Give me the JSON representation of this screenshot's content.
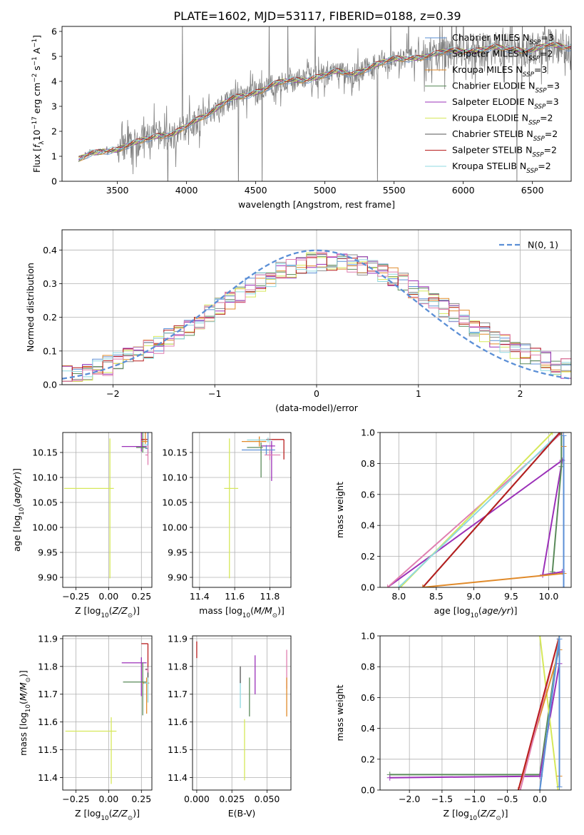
{
  "figure_title": "PLATE=1602, MJD=53117, FIBERID=0188, z=0.39",
  "colors": {
    "Chabrier MILES": "#5b8fd6",
    "Salpeter MILES": "#8c8c8c",
    "Kroupa MILES": "#e08a2a",
    "Chabrier ELODIE": "#5a8a5a",
    "Salpeter ELODIE": "#9b30b8",
    "Kroupa ELODIE": "#d6e85a",
    "Chabrier STELIB": "#555555",
    "Salpeter STELIB": "#b81e1e",
    "Kroupa STELIB": "#8fd8e0",
    "pink": "#e07fb0",
    "normal_curve": "#5b8fd6",
    "grid": "#b0b0b0"
  },
  "chart_data": [
    {
      "id": "spectrum",
      "type": "line",
      "xlabel": "wavelength [Angstrom, rest frame]",
      "ylabel": "Flux [f_λ 10^-17 erg cm^-2 s^-1 A^-1]",
      "xlim": [
        3100,
        6780
      ],
      "ylim": [
        0,
        6.2
      ],
      "xticks": [
        3500,
        4000,
        4500,
        5000,
        5500,
        6000,
        6500
      ],
      "yticks": [
        0,
        1,
        2,
        3,
        4,
        5,
        6
      ],
      "grid": false,
      "legend_position": "top-right",
      "legend": [
        {
          "model": "Chabrier MILES",
          "n": "3"
        },
        {
          "model": "Salpeter MILES",
          "n": "2"
        },
        {
          "model": "Kroupa MILES",
          "n": "3"
        },
        {
          "model": "Chabrier ELODIE",
          "n": "3"
        },
        {
          "model": "Salpeter ELODIE",
          "n": "3"
        },
        {
          "model": "Kroupa ELODIE",
          "n": "2"
        },
        {
          "model": "Chabrier STELIB",
          "n": "2"
        },
        {
          "model": "Salpeter STELIB",
          "n": "2"
        },
        {
          "model": "Kroupa STELIB",
          "n": "2"
        }
      ],
      "model_trend": [
        [
          3220,
          0.85
        ],
        [
          3300,
          1.15
        ],
        [
          3400,
          1.25
        ],
        [
          3500,
          1.2
        ],
        [
          3600,
          1.45
        ],
        [
          3700,
          1.75
        ],
        [
          3800,
          1.85
        ],
        [
          3900,
          1.8
        ],
        [
          4000,
          2.2
        ],
        [
          4100,
          2.6
        ],
        [
          4200,
          2.85
        ],
        [
          4300,
          3.2
        ],
        [
          4400,
          3.4
        ],
        [
          4500,
          3.6
        ],
        [
          4600,
          3.8
        ],
        [
          4700,
          3.95
        ],
        [
          4800,
          4.05
        ],
        [
          4900,
          4.15
        ],
        [
          5000,
          4.25
        ],
        [
          5100,
          4.35
        ],
        [
          5200,
          4.3
        ],
        [
          5300,
          4.55
        ],
        [
          5400,
          4.7
        ],
        [
          5500,
          4.85
        ],
        [
          5600,
          4.95
        ],
        [
          5700,
          5.0
        ],
        [
          5800,
          5.05
        ],
        [
          5900,
          5.2
        ],
        [
          6000,
          5.25
        ],
        [
          6100,
          5.25
        ],
        [
          6200,
          5.3
        ],
        [
          6300,
          5.3
        ],
        [
          6400,
          5.3
        ],
        [
          6500,
          5.25
        ],
        [
          6600,
          5.4
        ],
        [
          6700,
          5.4
        ]
      ]
    },
    {
      "id": "residuals",
      "type": "step",
      "xlabel": "(data-model)/error",
      "ylabel": "Normed distribution",
      "xlim": [
        -2.5,
        2.5
      ],
      "ylim": [
        0,
        0.46
      ],
      "xticks": [
        -2,
        -1,
        0,
        1,
        2
      ],
      "yticks": [
        0.0,
        0.1,
        0.2,
        0.3,
        0.4
      ],
      "grid": true,
      "legend_position": "top-right",
      "legend_label": "N(0, 1)",
      "curve": "gaussian mean 0 sigma 1",
      "bins": 50
    },
    {
      "id": "age_vs_Z",
      "type": "scatter",
      "xlabel": "Z [log10(Z/Z☉)]",
      "ylabel": "age  [log10(age/yr)]",
      "xlim": [
        -0.35,
        0.33
      ],
      "ylim": [
        9.88,
        10.19
      ],
      "xticks": [
        -0.25,
        0.0,
        0.25
      ],
      "yticks": [
        9.9,
        9.95,
        10.0,
        10.05,
        10.1,
        10.15
      ],
      "grid": true,
      "points": [
        {
          "model": "Kroupa ELODIE",
          "x": 0.01,
          "y": 10.078,
          "xerr": [
            0.35,
            0.03
          ],
          "yerr": [
            0.18,
            0.1
          ]
        },
        {
          "model": "Salpeter ELODIE",
          "x": 0.25,
          "y": 10.162,
          "xerr": [
            0.15,
            0.04
          ],
          "yerr": [
            0.01,
            0.07
          ]
        },
        {
          "model": "Chabrier ELODIE",
          "x": 0.26,
          "y": 10.16,
          "xerr": [
            0.05,
            0.03
          ],
          "yerr": [
            0.01,
            0.06
          ]
        },
        {
          "model": "Salpeter STELIB",
          "x": 0.3,
          "y": 10.176,
          "xerr": [
            0.05,
            0.0
          ],
          "yerr": [
            0.0,
            0.08
          ]
        },
        {
          "model": "Kroupa MILES",
          "x": 0.28,
          "y": 10.172,
          "xerr": [
            0.03,
            0.02
          ],
          "yerr": [
            0.005,
            0.07
          ]
        },
        {
          "model": "Kroupa STELIB",
          "x": 0.3,
          "y": 10.165,
          "xerr": [
            0.03,
            0.0
          ],
          "yerr": [
            0.01,
            0.06
          ]
        },
        {
          "model": "Chabrier MILES",
          "x": 0.3,
          "y": 10.158,
          "xerr": [
            0.02,
            0.0
          ],
          "yerr": [
            0.01,
            0.06
          ]
        },
        {
          "model": "pink",
          "x": 0.3,
          "y": 10.145,
          "xerr": [
            0.02,
            0.0
          ],
          "yerr": [
            0.02,
            0.02
          ]
        }
      ]
    },
    {
      "id": "age_vs_mass",
      "type": "scatter",
      "xlabel": "mass [log10(M/M☉)]",
      "ylabel": "",
      "xlim": [
        11.36,
        11.92
      ],
      "ylim": [
        9.88,
        10.19
      ],
      "xticks": [
        11.4,
        11.6,
        11.8
      ],
      "yticks": [
        9.9,
        9.95,
        10.0,
        10.05,
        10.1,
        10.15
      ],
      "grid": true,
      "points": [
        {
          "model": "Kroupa ELODIE",
          "x": 11.57,
          "y": 10.078,
          "xerr": [
            0.03,
            0.05
          ],
          "yerr": [
            0.18,
            0.1
          ]
        },
        {
          "model": "Salpeter ELODIE",
          "x": 11.81,
          "y": 10.163,
          "xerr": [
            0.06,
            0.02
          ],
          "yerr": [
            0.07,
            0.01
          ]
        },
        {
          "model": "Chabrier ELODIE",
          "x": 11.75,
          "y": 10.16,
          "xerr": [
            0.08,
            0.01
          ],
          "yerr": [
            0.06,
            0.01
          ]
        },
        {
          "model": "Salpeter STELIB",
          "x": 11.88,
          "y": 10.176,
          "xerr": [
            0.1,
            0.0
          ],
          "yerr": [
            0.04,
            0.0
          ]
        },
        {
          "model": "Kroupa MILES",
          "x": 11.74,
          "y": 10.172,
          "xerr": [
            0.1,
            0.04
          ],
          "yerr": [
            0.01,
            0.01
          ]
        },
        {
          "model": "Kroupa STELIB",
          "x": 11.79,
          "y": 10.175,
          "xerr": [
            0.12,
            0.02
          ],
          "yerr": [
            0.005,
            0.005
          ]
        },
        {
          "model": "Chabrier MILES",
          "x": 11.78,
          "y": 10.155,
          "xerr": [
            0.14,
            0.05
          ],
          "yerr": [
            0.01,
            0.01
          ]
        },
        {
          "model": "pink",
          "x": 11.8,
          "y": 10.145,
          "xerr": [
            0.03,
            0.06
          ],
          "yerr": [
            0.01,
            0.01
          ]
        }
      ]
    },
    {
      "id": "weight_vs_age",
      "type": "line",
      "xlabel": "age  [log10(age/yr)]",
      "ylabel": "mass weight",
      "xlim": [
        7.75,
        10.3
      ],
      "ylim": [
        0,
        1.0
      ],
      "xticks": [
        8.0,
        8.5,
        9.0,
        9.5,
        10.0
      ],
      "yticks": [
        0.0,
        0.2,
        0.4,
        0.6,
        0.8,
        1.0
      ],
      "grid": true,
      "series": [
        {
          "model": "Salpeter ELODIE",
          "x": [
            7.85,
            10.18,
            9.92,
            10.18
          ],
          "y": [
            0.0,
            0.82,
            0.08,
            0.1
          ]
        },
        {
          "model": "pink",
          "x": [
            7.85,
            10.18
          ],
          "y": [
            0.0,
            1.0
          ]
        },
        {
          "model": "Kroupa ELODIE",
          "x": [
            8.02,
            10.05
          ],
          "y": [
            0.0,
            1.0
          ]
        },
        {
          "model": "Kroupa STELIB",
          "x": [
            8.0,
            10.15
          ],
          "y": [
            0.0,
            1.0
          ]
        },
        {
          "model": "Chabrier STELIB",
          "x": [
            8.32,
            10.15
          ],
          "y": [
            0.0,
            1.0
          ]
        },
        {
          "model": "Salpeter STELIB",
          "x": [
            8.32,
            10.15
          ],
          "y": [
            0.0,
            1.0
          ]
        },
        {
          "model": "Chabrier ELODIE",
          "x": [
            10.05,
            10.17,
            10.17
          ],
          "y": [
            0.1,
            0.78,
            1.0
          ]
        },
        {
          "model": "Kroupa MILES",
          "x": [
            8.32,
            10.2,
            10.2
          ],
          "y": [
            0.0,
            0.09,
            0.91
          ]
        },
        {
          "model": "Chabrier MILES",
          "x": [
            10.2,
            10.2
          ],
          "y": [
            0.0,
            0.98
          ]
        }
      ]
    },
    {
      "id": "mass_vs_Z",
      "type": "scatter",
      "xlabel": "Z [log10(Z/Z☉)]",
      "ylabel": "mass [log10(M/M☉)]",
      "xlim": [
        -0.35,
        0.33
      ],
      "ylim": [
        11.355,
        11.91
      ],
      "xticks": [
        -0.25,
        0.0,
        0.25
      ],
      "yticks": [
        11.4,
        11.5,
        11.6,
        11.7,
        11.8,
        11.9
      ],
      "grid": true,
      "points": [
        {
          "model": "Kroupa ELODIE",
          "x": 0.02,
          "y": 11.567,
          "xerr": [
            0.35,
            0.04
          ],
          "yerr": [
            0.19,
            0.05
          ]
        },
        {
          "model": "Salpeter ELODIE",
          "x": 0.25,
          "y": 11.813,
          "xerr": [
            0.15,
            0.04
          ],
          "yerr": [
            0.12,
            0.02
          ]
        },
        {
          "model": "Chabrier ELODIE",
          "x": 0.26,
          "y": 11.744,
          "xerr": [
            0.15,
            0.03
          ],
          "yerr": [
            0.12,
            0.07
          ]
        },
        {
          "model": "Salpeter STELIB",
          "x": 0.3,
          "y": 11.882,
          "xerr": [
            0.05,
            0.0
          ],
          "yerr": [
            0.12,
            0.0
          ]
        },
        {
          "model": "Kroupa MILES",
          "x": 0.29,
          "y": 11.74,
          "xerr": [
            0.03,
            0.02
          ],
          "yerr": [
            0.11,
            0.02
          ]
        },
        {
          "model": "Kroupa STELIB",
          "x": 0.3,
          "y": 11.74,
          "xerr": [
            0.03,
            0.0
          ],
          "yerr": [
            0.07,
            0.05
          ]
        },
        {
          "model": "Chabrier STELIB",
          "x": 0.3,
          "y": 11.79,
          "xerr": [
            0.02,
            0.0
          ],
          "yerr": [
            0.03,
            0.01
          ]
        },
        {
          "model": "pink",
          "x": 0.3,
          "y": 11.788,
          "xerr": [
            0.02,
            0.0
          ],
          "yerr": [
            0.01,
            0.01
          ]
        }
      ]
    },
    {
      "id": "mass_vs_EBV",
      "type": "scatter",
      "xlabel": "E(B-V)",
      "ylabel": "",
      "xlim": [
        -0.003,
        0.067
      ],
      "ylim": [
        11.355,
        11.91
      ],
      "xticks": [
        0.0,
        0.025,
        0.05
      ],
      "yticks": [
        11.4,
        11.5,
        11.6,
        11.7,
        11.8,
        11.9
      ],
      "grid": true,
      "points": [
        {
          "model": "Salpeter STELIB",
          "x": 0.0,
          "y": 11.86,
          "xerr": [
            0,
            0
          ],
          "yerr": [
            0.03,
            0.03
          ]
        },
        {
          "model": "Kroupa STELIB",
          "x": 0.031,
          "y": 11.7,
          "xerr": [
            0,
            0
          ],
          "yerr": [
            0.05,
            0.05
          ]
        },
        {
          "model": "Kroupa ELODIE",
          "x": 0.034,
          "y": 11.5,
          "xerr": [
            0,
            0
          ],
          "yerr": [
            0.11,
            0.11
          ]
        },
        {
          "model": "Chabrier ELODIE",
          "x": 0.0375,
          "y": 11.69,
          "xerr": [
            0,
            0
          ],
          "yerr": [
            0.07,
            0.07
          ]
        },
        {
          "model": "Salpeter ELODIE",
          "x": 0.0415,
          "y": 11.77,
          "xerr": [
            0,
            0
          ],
          "yerr": [
            0.07,
            0.07
          ]
        },
        {
          "model": "Chabrier STELIB",
          "x": 0.031,
          "y": 11.77,
          "xerr": [
            0,
            0
          ],
          "yerr": [
            0.03,
            0.03
          ]
        },
        {
          "model": "pink",
          "x": 0.064,
          "y": 11.79,
          "xerr": [
            0,
            0
          ],
          "yerr": [
            0.07,
            0.07
          ]
        },
        {
          "model": "Kroupa MILES",
          "x": 0.064,
          "y": 11.69,
          "xerr": [
            0,
            0
          ],
          "yerr": [
            0.07,
            0.07
          ]
        }
      ]
    },
    {
      "id": "weight_vs_Z",
      "type": "line",
      "xlabel": "Z [log10(Z/Z☉)]",
      "ylabel": "mass weight",
      "xlim": [
        -2.45,
        0.48
      ],
      "ylim": [
        0,
        1.0
      ],
      "xticks": [
        -2.0,
        -1.5,
        -1.0,
        -0.5,
        0.0
      ],
      "yticks": [
        0.0,
        0.2,
        0.4,
        0.6,
        0.8,
        1.0
      ],
      "grid": true,
      "series": [
        {
          "model": "Chabrier ELODIE",
          "x": [
            -2.3,
            0.0,
            0.3
          ],
          "y": [
            0.1,
            0.1,
            1.0
          ]
        },
        {
          "model": "Salpeter ELODIE",
          "x": [
            -2.3,
            0.0,
            0.3
          ],
          "y": [
            0.08,
            0.09,
            0.82
          ]
        },
        {
          "model": "Kroupa ELODIE",
          "x": [
            0.0,
            0.28
          ],
          "y": [
            1.0,
            0.0
          ]
        },
        {
          "model": "Kroupa MILES",
          "x": [
            -0.33,
            0.3,
            0.3
          ],
          "y": [
            0.0,
            0.91,
            0.09
          ]
        },
        {
          "model": "pink",
          "x": [
            -0.3,
            0.3
          ],
          "y": [
            0.0,
            1.0
          ]
        },
        {
          "model": "Salpeter STELIB",
          "x": [
            -0.33,
            0.3
          ],
          "y": [
            0.0,
            1.0
          ]
        },
        {
          "model": "Kroupa STELIB",
          "x": [
            0.0,
            0.3
          ],
          "y": [
            0.0,
            1.0
          ]
        },
        {
          "model": "Chabrier MILES",
          "x": [
            0.0,
            0.3,
            0.3
          ],
          "y": [
            0.0,
            0.98,
            0.02
          ]
        }
      ]
    }
  ]
}
